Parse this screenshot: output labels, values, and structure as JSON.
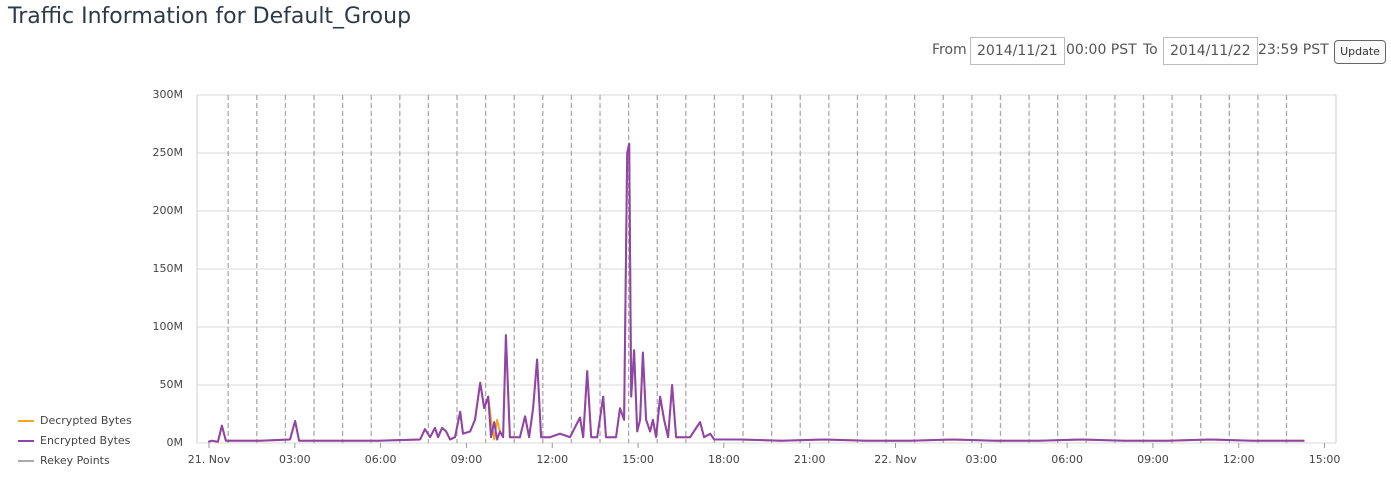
{
  "header": {
    "title": "Traffic Information for Default_Group"
  },
  "controls": {
    "from_label": "From",
    "from_date": "2014/11/21",
    "from_time": "00:00 PST",
    "to_label": "To",
    "to_date": "2014/11/22",
    "to_time": "23:59 PST",
    "update": "Update"
  },
  "chart_data": {
    "type": "line",
    "x": [
      -0.03,
      0.1,
      0.31,
      0.45,
      0.59,
      1.78,
      2.83,
      3.01,
      3.15,
      4.58,
      5.98,
      7.38,
      7.55,
      7.73,
      7.9,
      8.01,
      8.15,
      8.29,
      8.43,
      8.6,
      8.78,
      8.88,
      9.13,
      9.3,
      9.48,
      9.62,
      9.76,
      9.86,
      9.97,
      10.07,
      10.17,
      10.28,
      10.38,
      10.52,
      10.87,
      11.05,
      11.19,
      11.33,
      11.47,
      11.61,
      11.92,
      12.27,
      12.62,
      12.97,
      13.08,
      13.22,
      13.36,
      13.57,
      13.78,
      13.88,
      14.23,
      14.37,
      14.51,
      14.62,
      14.69,
      14.76,
      14.86,
      14.97,
      15.07,
      15.17,
      15.28,
      15.42,
      15.52,
      15.63,
      15.77,
      15.91,
      16.05,
      16.19,
      16.33,
      16.82,
      17.17,
      17.31,
      17.52,
      17.66,
      18.57,
      20,
      21.5,
      23,
      24.5,
      26,
      27.5,
      29,
      30.5,
      32,
      33.5,
      35,
      36.5,
      38.3
    ],
    "series": [
      {
        "name": "Decrypted Bytes",
        "color": "#f5a623",
        "values": [
          1000000,
          2000000,
          1000000,
          15000000,
          2000000,
          2000000,
          3000000,
          19000000,
          2000000,
          2000000,
          2000000,
          3000000,
          12000000,
          5000000,
          13000000,
          5000000,
          13000000,
          10000000,
          3000000,
          5000000,
          27000000,
          8000000,
          10000000,
          20000000,
          52000000,
          30000000,
          40000000,
          20000000,
          3000000,
          20000000,
          10000000,
          5000000,
          93000000,
          5000000,
          5000000,
          23000000,
          5000000,
          30000000,
          72000000,
          5000000,
          5000000,
          8000000,
          5000000,
          22000000,
          5000000,
          62000000,
          5000000,
          5000000,
          40000000,
          5000000,
          5000000,
          30000000,
          20000000,
          250000000,
          258000000,
          40000000,
          80000000,
          10000000,
          20000000,
          78000000,
          20000000,
          10000000,
          20000000,
          5000000,
          40000000,
          20000000,
          5000000,
          50000000,
          5000000,
          5000000,
          18000000,
          5000000,
          8000000,
          3000000,
          3000000,
          2000000,
          3000000,
          2000000,
          2000000,
          3000000,
          2000000,
          2000000,
          3000000,
          2000000,
          2000000,
          3000000,
          2000000,
          2000000
        ]
      },
      {
        "name": "Encrypted Bytes",
        "color": "#8e44ad",
        "values": [
          1000000,
          2000000,
          1000000,
          15000000,
          2000000,
          2000000,
          3000000,
          19000000,
          2000000,
          2000000,
          2000000,
          3000000,
          12000000,
          5000000,
          13000000,
          5000000,
          13000000,
          10000000,
          3000000,
          5000000,
          27000000,
          8000000,
          10000000,
          20000000,
          52000000,
          30000000,
          40000000,
          5000000,
          18000000,
          3000000,
          10000000,
          5000000,
          93000000,
          5000000,
          5000000,
          23000000,
          5000000,
          30000000,
          72000000,
          5000000,
          5000000,
          8000000,
          5000000,
          22000000,
          5000000,
          62000000,
          5000000,
          5000000,
          40000000,
          5000000,
          5000000,
          30000000,
          20000000,
          250000000,
          258000000,
          40000000,
          80000000,
          10000000,
          20000000,
          78000000,
          20000000,
          10000000,
          20000000,
          5000000,
          40000000,
          20000000,
          5000000,
          50000000,
          5000000,
          5000000,
          18000000,
          5000000,
          8000000,
          3000000,
          3000000,
          2000000,
          3000000,
          2000000,
          2000000,
          3000000,
          2000000,
          2000000,
          3000000,
          2000000,
          2000000,
          3000000,
          2000000,
          2000000
        ]
      }
    ],
    "rekey": {
      "name": "Rekey Points",
      "color": "#aaaaaa",
      "x": [
        0.67,
        1.67,
        2.67,
        3.67,
        4.67,
        5.67,
        6.67,
        7.67,
        8.67,
        9.67,
        10.67,
        11.67,
        12.67,
        13.67,
        14.67,
        15.67,
        16.67,
        17.67,
        18.67,
        19.67,
        20.67,
        21.67,
        22.67,
        23.67,
        24.67,
        25.67,
        26.67,
        27.67,
        28.67,
        29.67,
        30.67,
        31.67,
        32.67,
        33.67,
        34.67,
        35.67,
        36.67,
        37.67
      ]
    },
    "xlim": [
      -0.42,
      39.4
    ],
    "xticks": [
      {
        "value": 0,
        "label": "21. Nov"
      },
      {
        "value": 3,
        "label": "03:00"
      },
      {
        "value": 6,
        "label": "06:00"
      },
      {
        "value": 9,
        "label": "09:00"
      },
      {
        "value": 12,
        "label": "12:00"
      },
      {
        "value": 15,
        "label": "15:00"
      },
      {
        "value": 18,
        "label": "18:00"
      },
      {
        "value": 21,
        "label": "21:00"
      },
      {
        "value": 24,
        "label": "22. Nov"
      },
      {
        "value": 27,
        "label": "03:00"
      },
      {
        "value": 30,
        "label": "06:00"
      },
      {
        "value": 33,
        "label": "09:00"
      },
      {
        "value": 36,
        "label": "12:00"
      },
      {
        "value": 39,
        "label": "15:00"
      }
    ],
    "ylim": [
      0,
      300000000
    ],
    "yticks": [
      {
        "value": 0,
        "label": "0M"
      },
      {
        "value": 50000000,
        "label": "50M"
      },
      {
        "value": 100000000,
        "label": "100M"
      },
      {
        "value": 150000000,
        "label": "150M"
      },
      {
        "value": 200000000,
        "label": "200M"
      },
      {
        "value": 250000000,
        "label": "250M"
      },
      {
        "value": 300000000,
        "label": "300M"
      }
    ],
    "grid": true
  }
}
